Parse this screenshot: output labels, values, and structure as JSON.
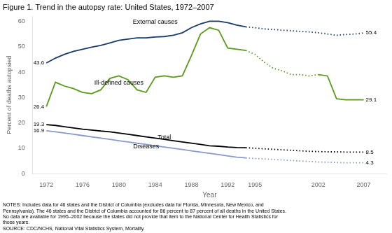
{
  "chart_data": {
    "type": "line",
    "title": "Figure 1. Trend in the autopsy rate: United States, 1972–2007",
    "xlabel": "Year",
    "ylabel": "Percent of deaths autopsied",
    "notes": "NOTES: Includes data for 46 states and the District of Columbia (excludes data for Florida, Minnesota, New Mexico, and\nPennsylvania). The 46 states and the District of Columbia accounted for 86 percent to 87 percent of all deaths in the United States.\nNo data are available for 1995–2002 because the states did not provide that item to the National Center for Health Statistics for\nthose years.\nSOURCE: CDC/NCHS, National Vital Statistics System, Mortality.",
    "xlim": [
      1970.5,
      2009.5
    ],
    "xticks": [
      1972,
      1976,
      1980,
      1984,
      1988,
      1992,
      1995,
      2002,
      2007
    ],
    "ylim": [
      0,
      62
    ],
    "yticks": [
      0,
      10,
      20,
      30,
      40,
      50,
      60
    ],
    "grid": false,
    "series": [
      {
        "name": "External causes",
        "color": "#1a3a6b",
        "line_style": "solid",
        "x": [
          1972,
          1973,
          1974,
          1975,
          1976,
          1977,
          1978,
          1979,
          1980,
          1981,
          1982,
          1983,
          1984,
          1985,
          1986,
          1987,
          1988,
          1989,
          1990,
          1991,
          1992,
          1993,
          1994
        ],
        "values": [
          43.6,
          45.5,
          47.0,
          48.2,
          49.0,
          49.8,
          50.5,
          51.5,
          52.5,
          53.0,
          53.5,
          53.5,
          53.8,
          54.0,
          54.5,
          55.5,
          57.5,
          59.0,
          60.0,
          60.0,
          59.5,
          58.5,
          57.8
        ]
      },
      {
        "name": "External causes",
        "color": "#1a3a6b",
        "line_style": "dotted",
        "x": [
          1994,
          1995,
          1996,
          1997,
          1998,
          1999,
          2000,
          2001,
          2002,
          2003,
          2004,
          2005,
          2006,
          2007
        ],
        "values": [
          57.8,
          57.5,
          57.0,
          56.8,
          56.5,
          56.3,
          56.0,
          55.8,
          55.5,
          55.0,
          54.5,
          54.8,
          55.0,
          55.4
        ]
      },
      {
        "name": "Ill-defined causes",
        "color": "#5a9a1a",
        "line_style": "solid",
        "x": [
          1972,
          1973,
          1974,
          1975,
          1976,
          1977,
          1978,
          1979,
          1980,
          1981,
          1982,
          1983,
          1984,
          1985,
          1986,
          1987,
          1988,
          1989,
          1990,
          1991,
          1992,
          1993,
          1994
        ],
        "values": [
          26.4,
          36.0,
          34.5,
          33.5,
          32.0,
          31.5,
          33.0,
          37.5,
          38.5,
          37.0,
          33.0,
          32.0,
          38.0,
          38.5,
          38.0,
          38.5,
          46.5,
          55.0,
          57.5,
          56.5,
          49.5,
          49.0,
          48.5
        ]
      },
      {
        "name": "Ill-defined causes",
        "color": "#5a9a1a",
        "line_style": "dotted",
        "x": [
          1994,
          1995,
          1996,
          1997,
          1998,
          1999,
          2000,
          2001,
          2002
        ],
        "values": [
          48.5,
          47.0,
          44.0,
          41.5,
          40.5,
          39.0,
          39.0,
          38.5,
          39.0
        ]
      },
      {
        "name": "Ill-defined causes",
        "color": "#5a9a1a",
        "line_style": "solid",
        "x": [
          2002,
          2003,
          2004,
          2005,
          2006,
          2007
        ],
        "values": [
          39.0,
          38.5,
          29.5,
          29.1,
          29.1,
          29.1
        ]
      },
      {
        "name": "Total",
        "color": "#000000",
        "line_style": "solid",
        "x": [
          1972,
          1973,
          1974,
          1975,
          1976,
          1977,
          1978,
          1979,
          1980,
          1981,
          1982,
          1983,
          1984,
          1985,
          1986,
          1987,
          1988,
          1989,
          1990,
          1991,
          1992,
          1993,
          1994
        ],
        "values": [
          19.3,
          19.0,
          18.5,
          18.0,
          17.5,
          17.2,
          16.8,
          16.5,
          16.0,
          15.5,
          15.0,
          14.5,
          14.0,
          13.5,
          13.0,
          12.5,
          12.0,
          11.5,
          11.0,
          10.8,
          10.5,
          10.3,
          10.2
        ]
      },
      {
        "name": "Total",
        "color": "#000000",
        "line_style": "dotted",
        "x": [
          1994,
          1995,
          1996,
          1997,
          1998,
          1999,
          2000,
          2001,
          2002,
          2003,
          2004,
          2005,
          2006,
          2007
        ],
        "values": [
          10.2,
          10.0,
          9.8,
          9.6,
          9.4,
          9.2,
          9.0,
          8.8,
          8.7,
          8.6,
          8.6,
          8.5,
          8.5,
          8.5
        ]
      },
      {
        "name": "Diseases",
        "color": "#8899cc",
        "line_style": "solid",
        "x": [
          1972,
          1973,
          1974,
          1975,
          1976,
          1977,
          1978,
          1979,
          1980,
          1981,
          1982,
          1983,
          1984,
          1985,
          1986,
          1987,
          1988,
          1989,
          1990,
          1991,
          1992,
          1993,
          1994
        ],
        "values": [
          16.9,
          16.5,
          16.0,
          15.5,
          15.0,
          14.5,
          14.0,
          13.5,
          13.0,
          12.5,
          12.0,
          11.5,
          11.0,
          10.5,
          10.0,
          9.5,
          9.0,
          8.5,
          8.0,
          7.5,
          7.0,
          6.5,
          6.2
        ]
      },
      {
        "name": "Diseases",
        "color": "#8899cc",
        "line_style": "dotted",
        "x": [
          1994,
          1995,
          1996,
          1997,
          1998,
          1999,
          2000,
          2001,
          2002,
          2003,
          2004,
          2005,
          2006,
          2007
        ],
        "values": [
          6.2,
          6.0,
          5.8,
          5.6,
          5.4,
          5.2,
          5.0,
          4.8,
          4.6,
          4.5,
          4.4,
          4.3,
          4.3,
          4.3
        ]
      }
    ],
    "annotations": [
      {
        "text": "43.6",
        "x": 1972,
        "y": 43.6
      },
      {
        "text": "26.4",
        "x": 1972,
        "y": 26.4
      },
      {
        "text": "19.3",
        "x": 1972,
        "y": 19.3
      },
      {
        "text": "16.9",
        "x": 1972,
        "y": 16.9
      },
      {
        "text": "55.4",
        "x": 2007,
        "y": 55.4
      },
      {
        "text": "29.1",
        "x": 2007,
        "y": 29.1
      },
      {
        "text": "8.5",
        "x": 2007,
        "y": 8.5
      },
      {
        "text": "4.3",
        "x": 2007,
        "y": 4.3
      },
      {
        "text": "External causes",
        "x": 1984,
        "y": 58.5
      },
      {
        "text": "Ill-defined causes",
        "x": 1980,
        "y": 34.5
      },
      {
        "text": "Total",
        "x": 1985,
        "y": 13.0
      },
      {
        "text": "Diseases",
        "x": 1983,
        "y": 9.5
      }
    ]
  }
}
